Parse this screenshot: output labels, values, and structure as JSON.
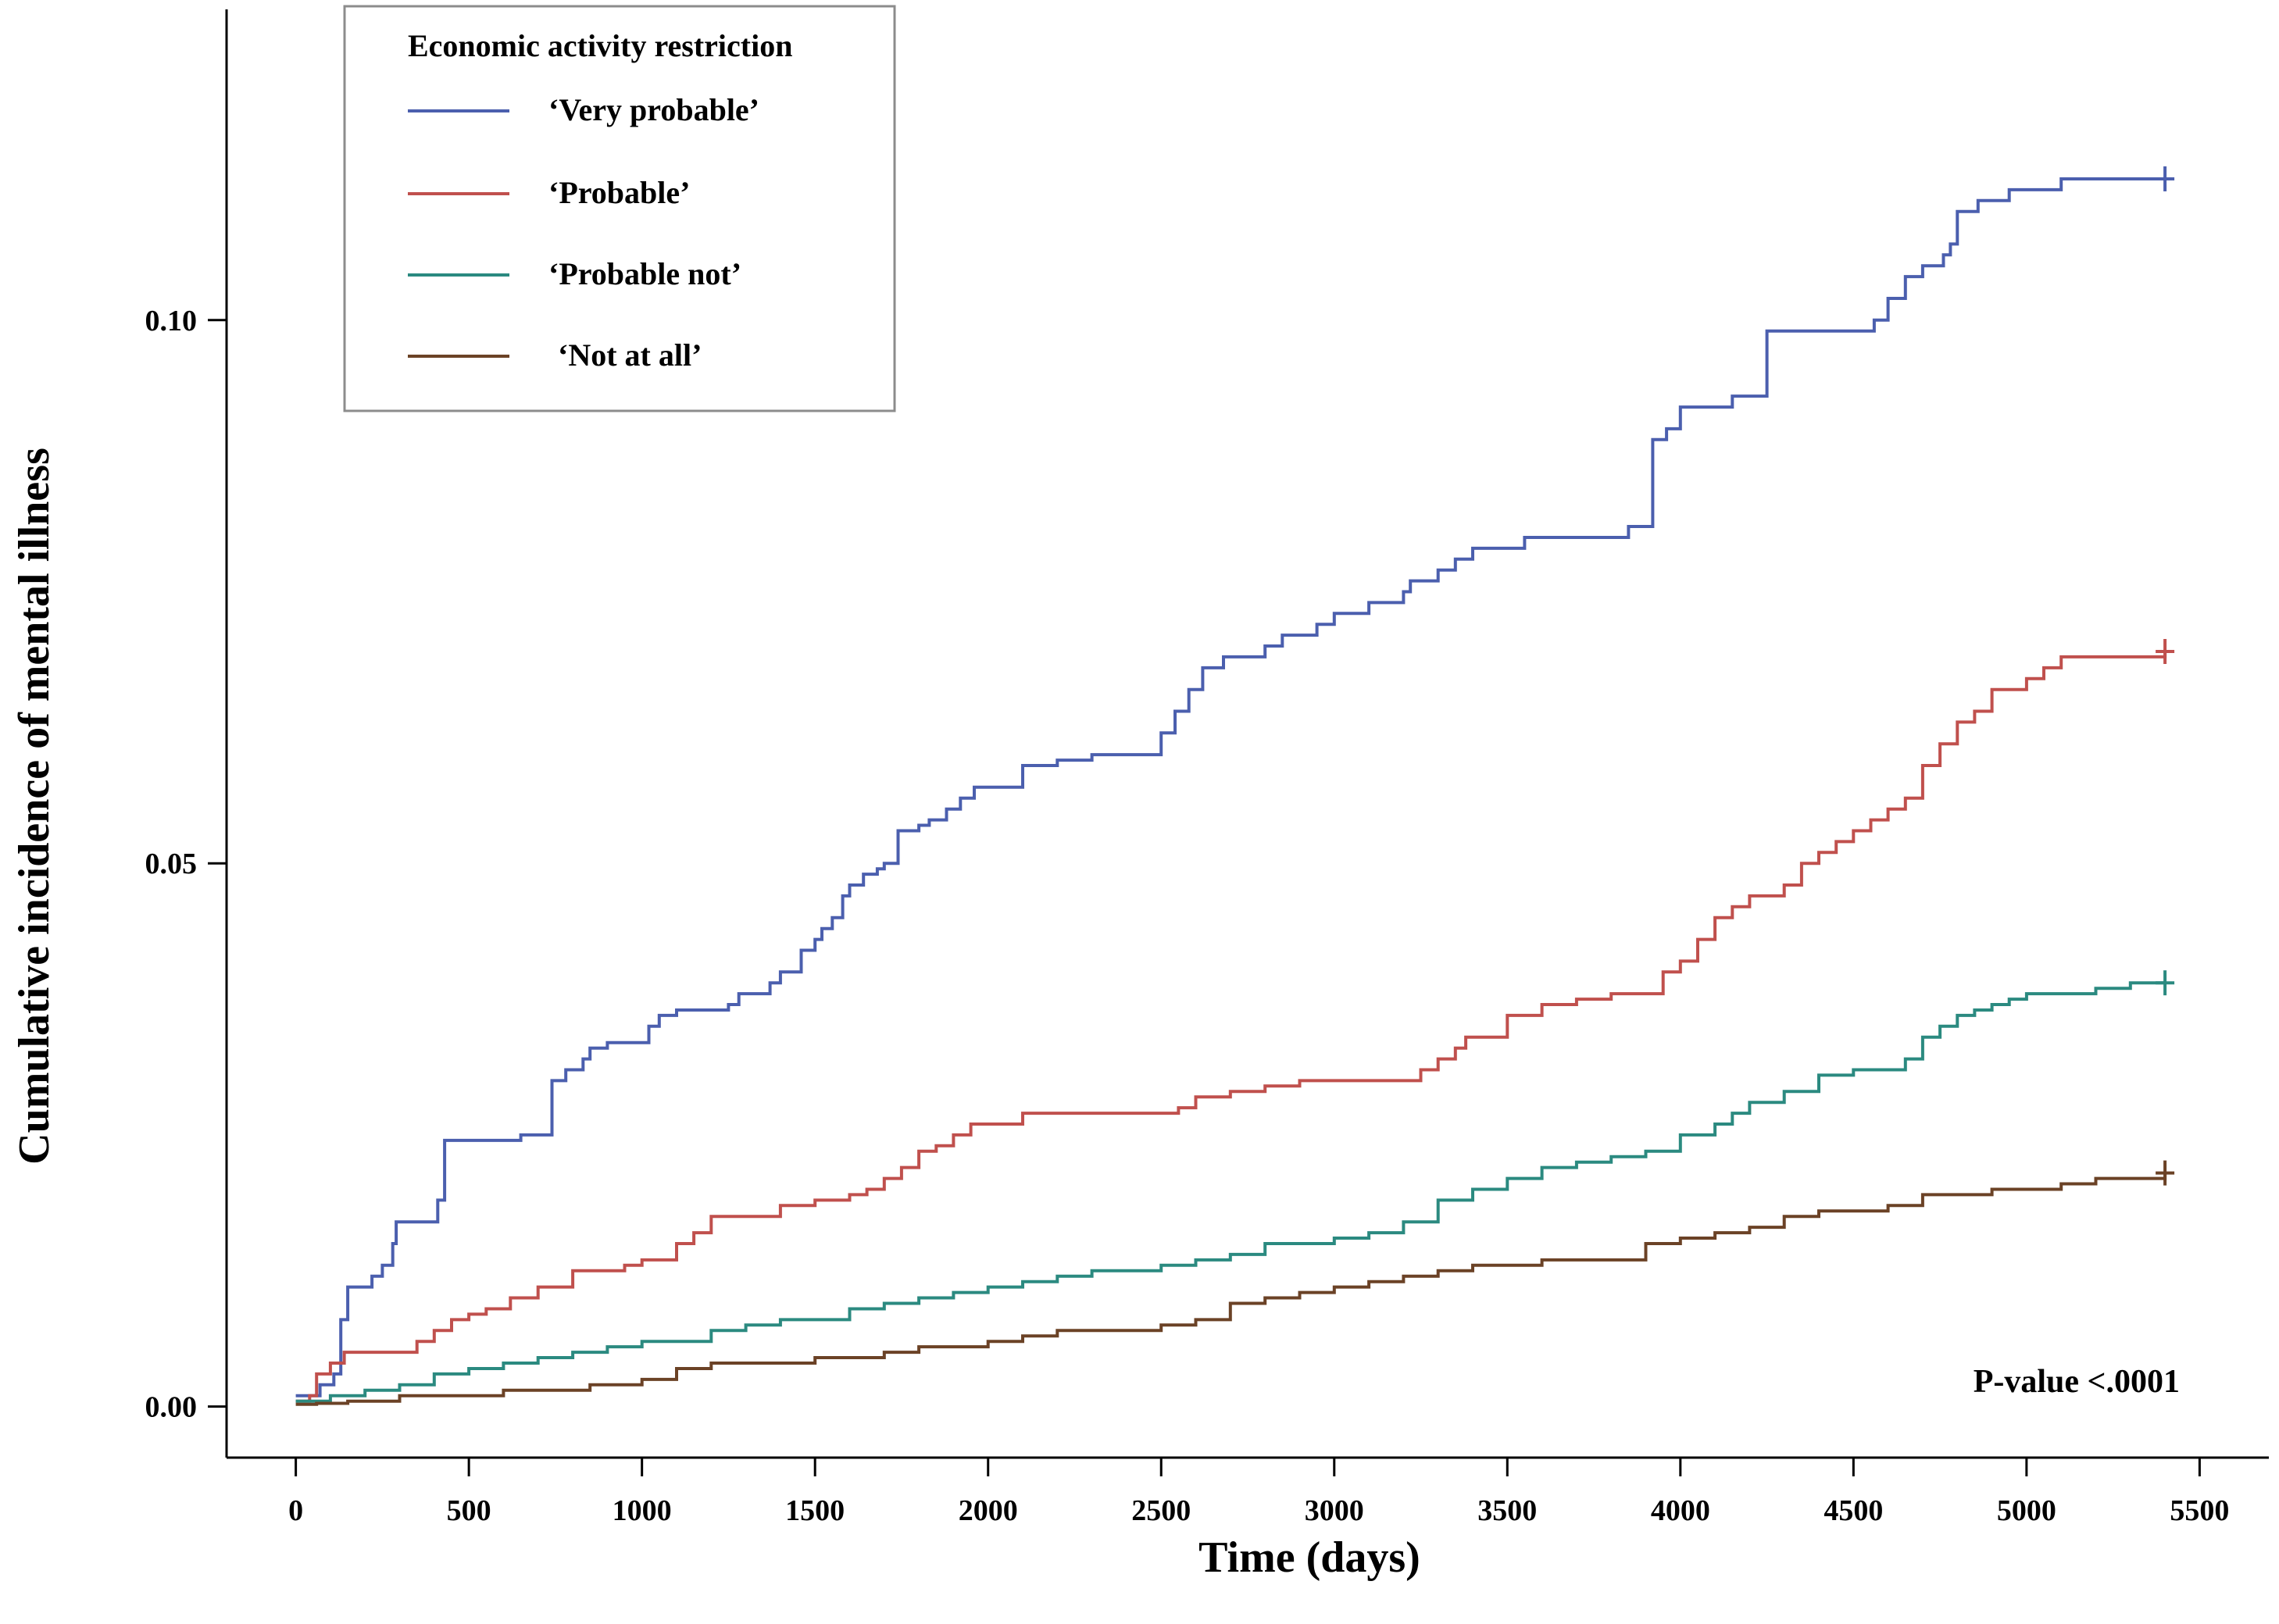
{
  "chart_data": {
    "type": "line",
    "step": true,
    "xlabel": "Time (days)",
    "ylabel": "Cumulative incidence of  mental illness",
    "xlim": [
      -200,
      5700
    ],
    "ylim": [
      -0.0047,
      0.1286
    ],
    "xticks": [
      0,
      500,
      1000,
      1500,
      2000,
      2500,
      3000,
      3500,
      4000,
      4500,
      5000,
      5500
    ],
    "yticks": [
      0.0,
      0.05,
      0.1
    ],
    "ytick_labels": [
      "0.00",
      "0.05",
      "0.10"
    ],
    "grid": false,
    "legend": {
      "title": "Economic activity restriction",
      "position": "top-left"
    },
    "annotation": "P-value <.0001",
    "series": [
      {
        "name": "‘Very probable’",
        "color": "#4b5fae",
        "x": [
          0,
          50,
          70,
          110,
          130,
          150,
          220,
          250,
          280,
          290,
          410,
          430,
          550,
          600,
          650,
          700,
          740,
          780,
          800,
          830,
          850,
          900,
          1020,
          1050,
          1100,
          1250,
          1280,
          1350,
          1370,
          1400,
          1460,
          1480,
          1500,
          1520,
          1550,
          1580,
          1600,
          1640,
          1680,
          1700,
          1740,
          1800,
          1830,
          1880,
          1920,
          1960,
          2000,
          2100,
          2200,
          2300,
          2400,
          2500,
          2540,
          2580,
          2620,
          2680,
          2700,
          2800,
          2850,
          2900,
          2950,
          3000,
          3050,
          3100,
          3200,
          3220,
          3300,
          3350,
          3400,
          3460,
          3500,
          3550,
          3600,
          3650,
          3700,
          3800,
          3850,
          3900,
          3920,
          3960,
          4000,
          4100,
          4150,
          4250,
          4300,
          4400,
          4500,
          4560,
          4600,
          4650,
          4700,
          4760,
          4780,
          4800,
          4860,
          4900,
          4950,
          5000,
          5100,
          5200,
          5300,
          5400
        ],
        "y": [
          0.001,
          0.001,
          0.002,
          0.003,
          0.008,
          0.011,
          0.012,
          0.013,
          0.015,
          0.017,
          0.019,
          0.0245,
          0.0245,
          0.0245,
          0.025,
          0.025,
          0.03,
          0.031,
          0.031,
          0.032,
          0.033,
          0.0335,
          0.035,
          0.036,
          0.0365,
          0.037,
          0.038,
          0.038,
          0.039,
          0.04,
          0.042,
          0.042,
          0.043,
          0.044,
          0.045,
          0.047,
          0.048,
          0.049,
          0.0495,
          0.05,
          0.053,
          0.0535,
          0.054,
          0.055,
          0.056,
          0.057,
          0.057,
          0.059,
          0.0595,
          0.06,
          0.06,
          0.062,
          0.064,
          0.066,
          0.068,
          0.069,
          0.069,
          0.07,
          0.071,
          0.071,
          0.072,
          0.073,
          0.073,
          0.074,
          0.075,
          0.076,
          0.077,
          0.078,
          0.079,
          0.079,
          0.079,
          0.08,
          0.08,
          0.08,
          0.08,
          0.08,
          0.081,
          0.081,
          0.089,
          0.09,
          0.092,
          0.092,
          0.093,
          0.099,
          0.099,
          0.099,
          0.099,
          0.1,
          0.102,
          0.104,
          0.105,
          0.106,
          0.107,
          0.11,
          0.111,
          0.111,
          0.112,
          0.112,
          0.113,
          0.113,
          0.113,
          0.113
        ]
      },
      {
        "name": "‘Probable’",
        "color": "#c0504d",
        "x": [
          0,
          40,
          60,
          100,
          140,
          220,
          300,
          350,
          400,
          450,
          500,
          550,
          620,
          700,
          800,
          900,
          950,
          1000,
          1100,
          1150,
          1200,
          1400,
          1500,
          1600,
          1650,
          1700,
          1750,
          1800,
          1850,
          1900,
          1950,
          2000,
          2100,
          2200,
          2300,
          2400,
          2500,
          2550,
          2600,
          2700,
          2800,
          2900,
          3000,
          3100,
          3150,
          3200,
          3250,
          3300,
          3350,
          3380,
          3450,
          3500,
          3600,
          3700,
          3800,
          3850,
          3900,
          3950,
          4000,
          4050,
          4100,
          4150,
          4200,
          4300,
          4350,
          4400,
          4450,
          4500,
          4550,
          4600,
          4650,
          4700,
          4750,
          4800,
          4850,
          4900,
          5000,
          5050,
          5100,
          5200,
          5300,
          5400
        ],
        "y": [
          0.0005,
          0.001,
          0.003,
          0.004,
          0.005,
          0.005,
          0.005,
          0.006,
          0.007,
          0.008,
          0.0085,
          0.009,
          0.01,
          0.011,
          0.0125,
          0.0125,
          0.013,
          0.0135,
          0.015,
          0.016,
          0.0175,
          0.0185,
          0.019,
          0.0195,
          0.02,
          0.021,
          0.022,
          0.0235,
          0.024,
          0.025,
          0.026,
          0.026,
          0.027,
          0.027,
          0.027,
          0.027,
          0.027,
          0.0275,
          0.0285,
          0.029,
          0.0295,
          0.03,
          0.03,
          0.03,
          0.03,
          0.03,
          0.031,
          0.032,
          0.033,
          0.034,
          0.034,
          0.036,
          0.037,
          0.0375,
          0.038,
          0.038,
          0.038,
          0.04,
          0.041,
          0.043,
          0.045,
          0.046,
          0.047,
          0.048,
          0.05,
          0.051,
          0.052,
          0.053,
          0.054,
          0.055,
          0.056,
          0.059,
          0.061,
          0.063,
          0.064,
          0.066,
          0.067,
          0.068,
          0.069,
          0.069,
          0.069,
          0.0695
        ]
      },
      {
        "name": "‘Probable not’",
        "color": "#2b8a80",
        "x": [
          0,
          100,
          200,
          300,
          400,
          500,
          600,
          700,
          800,
          900,
          1000,
          1100,
          1200,
          1300,
          1400,
          1500,
          1600,
          1700,
          1800,
          1900,
          2000,
          2100,
          2200,
          2300,
          2400,
          2500,
          2600,
          2700,
          2800,
          2900,
          3000,
          3100,
          3200,
          3300,
          3400,
          3500,
          3600,
          3700,
          3800,
          3900,
          4000,
          4100,
          4150,
          4200,
          4250,
          4300,
          4400,
          4500,
          4600,
          4650,
          4700,
          4750,
          4800,
          4850,
          4900,
          4950,
          5000,
          5100,
          5200,
          5300,
          5400
        ],
        "y": [
          0.0005,
          0.001,
          0.0015,
          0.002,
          0.003,
          0.0035,
          0.004,
          0.0045,
          0.005,
          0.0055,
          0.006,
          0.006,
          0.007,
          0.0075,
          0.008,
          0.008,
          0.009,
          0.0095,
          0.01,
          0.0105,
          0.011,
          0.0115,
          0.012,
          0.0125,
          0.0125,
          0.013,
          0.0135,
          0.014,
          0.015,
          0.015,
          0.0155,
          0.016,
          0.017,
          0.019,
          0.02,
          0.021,
          0.022,
          0.0225,
          0.023,
          0.0235,
          0.025,
          0.026,
          0.027,
          0.028,
          0.028,
          0.029,
          0.0305,
          0.031,
          0.031,
          0.032,
          0.034,
          0.035,
          0.036,
          0.0365,
          0.037,
          0.0375,
          0.038,
          0.038,
          0.0385,
          0.039,
          0.039
        ]
      },
      {
        "name": "‘Not at all’",
        "color": "#6b4226",
        "x": [
          0,
          60,
          150,
          300,
          400,
          600,
          850,
          1000,
          1100,
          1200,
          1400,
          1500,
          1600,
          1700,
          1800,
          2000,
          2100,
          2200,
          2300,
          2500,
          2600,
          2700,
          2800,
          2900,
          3000,
          3100,
          3200,
          3300,
          3400,
          3500,
          3600,
          3700,
          3800,
          3900,
          4000,
          4100,
          4200,
          4300,
          4400,
          4500,
          4600,
          4700,
          4800,
          4900,
          5000,
          5100,
          5200,
          5300,
          5400
        ],
        "y": [
          0.0002,
          0.0003,
          0.0005,
          0.001,
          0.001,
          0.0015,
          0.002,
          0.0025,
          0.0035,
          0.004,
          0.004,
          0.0045,
          0.0045,
          0.005,
          0.0055,
          0.006,
          0.0065,
          0.007,
          0.007,
          0.0075,
          0.008,
          0.0095,
          0.01,
          0.0105,
          0.011,
          0.0115,
          0.012,
          0.0125,
          0.013,
          0.013,
          0.0135,
          0.0135,
          0.0135,
          0.015,
          0.0155,
          0.016,
          0.0165,
          0.0175,
          0.018,
          0.018,
          0.0185,
          0.0195,
          0.0195,
          0.02,
          0.02,
          0.0205,
          0.021,
          0.021,
          0.0215
        ]
      }
    ]
  }
}
